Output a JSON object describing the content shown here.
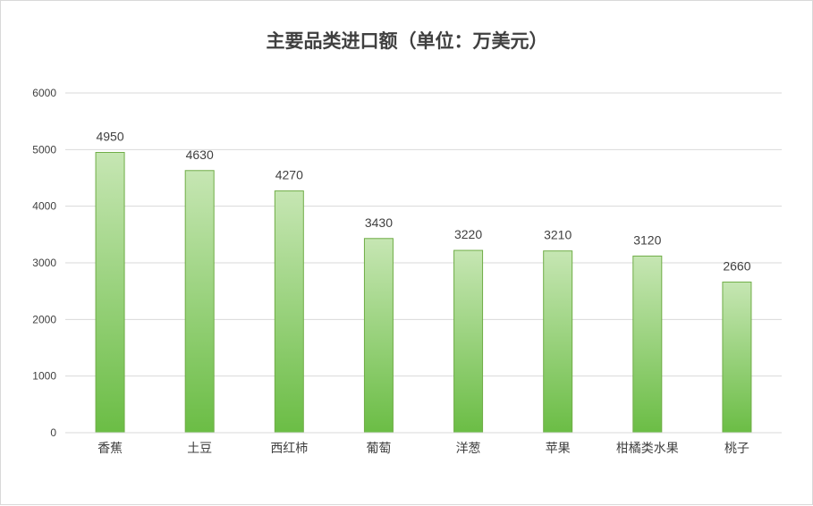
{
  "chart_data": {
    "type": "bar",
    "title": "主要品类进口额（单位：万美元）",
    "categories": [
      "香蕉",
      "土豆",
      "西红柿",
      "葡萄",
      "洋葱",
      "苹果",
      "柑橘类水果",
      "桃子"
    ],
    "values": [
      4950,
      4630,
      4270,
      3430,
      3220,
      3210,
      3120,
      2660
    ],
    "yticks": [
      0,
      1000,
      2000,
      3000,
      4000,
      5000,
      6000
    ],
    "ylim": [
      0,
      6000
    ],
    "grid": true,
    "legend": "none",
    "bar_color_top": "#c6e6b3",
    "bar_color_bottom": "#6bbd45",
    "bar_border": "#70ad47"
  }
}
